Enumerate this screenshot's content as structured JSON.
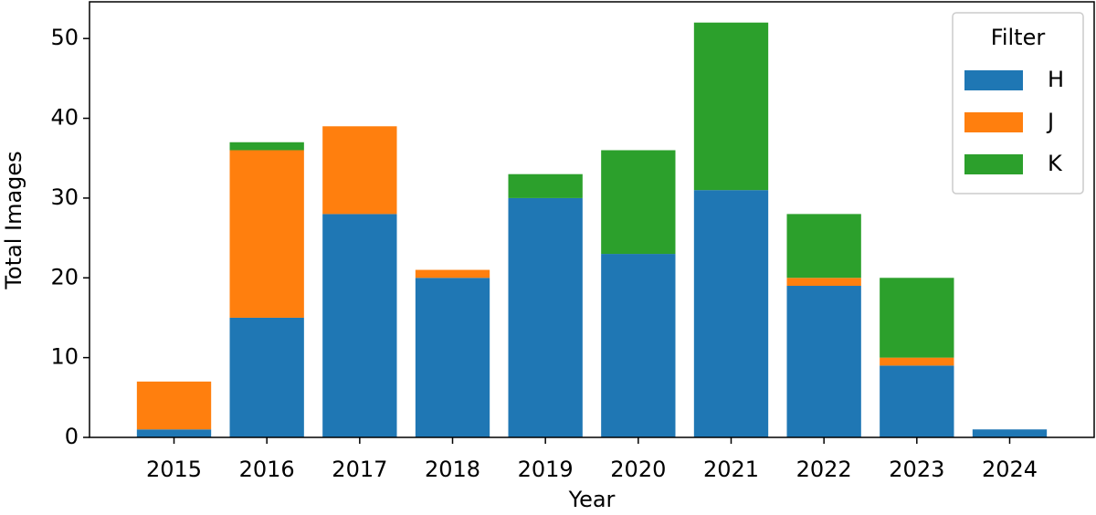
{
  "chart_data": {
    "type": "stacked-bar",
    "x_label": "Year",
    "y_label": "Total Images",
    "categories": [
      "2015",
      "2016",
      "2017",
      "2018",
      "2019",
      "2020",
      "2021",
      "2022",
      "2023",
      "2024"
    ],
    "series": [
      {
        "name": "H",
        "color": "#1f77b4",
        "values": [
          1,
          15,
          28,
          20,
          30,
          23,
          31,
          19,
          9,
          1
        ]
      },
      {
        "name": "J",
        "color": "#ff7f0e",
        "values": [
          6,
          21,
          11,
          1,
          0,
          0,
          0,
          1,
          1,
          0
        ]
      },
      {
        "name": "K",
        "color": "#2ca02c",
        "values": [
          0,
          1,
          0,
          0,
          3,
          13,
          21,
          8,
          10,
          0
        ]
      }
    ],
    "ylim": [
      0,
      54.6
    ],
    "yticks": [
      0,
      10,
      20,
      30,
      40,
      50
    ],
    "legend_title": "Filter",
    "legend_position": "upper-right"
  }
}
